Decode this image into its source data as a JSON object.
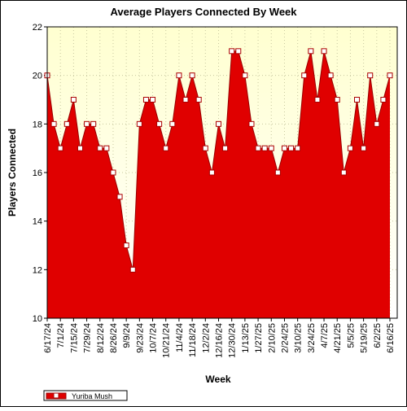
{
  "chart_data": {
    "type": "area",
    "title": "Average Players Connected By Week",
    "xlabel": "Week",
    "ylabel": "Players Connected",
    "categories": [
      "6/17/24",
      null,
      "7/1/24",
      null,
      "7/15/24",
      null,
      "7/29/24",
      null,
      "8/12/24",
      null,
      "8/26/24",
      null,
      "9/9/24",
      null,
      "9/23/24",
      null,
      "10/7/24",
      null,
      "10/21/24",
      null,
      "11/4/24",
      null,
      "11/18/24",
      null,
      "12/2/24",
      null,
      "12/16/24",
      null,
      "12/30/24",
      null,
      "1/13/25",
      null,
      "1/27/25",
      null,
      "2/10/25",
      null,
      "2/24/25",
      null,
      "3/10/25",
      null,
      "3/24/25",
      null,
      "4/7/25",
      null,
      "4/21/25",
      null,
      "5/5/25",
      null,
      "5/19/25",
      null,
      "6/2/25",
      null,
      "6/16/25"
    ],
    "series": [
      {
        "name": "Yuriba Mush",
        "color": "#e00000",
        "values": [
          20,
          18,
          17,
          18,
          19,
          17,
          18,
          18,
          17,
          17,
          16,
          15,
          13,
          12,
          18,
          19,
          19,
          18,
          17,
          18,
          20,
          19,
          20,
          19,
          17,
          16,
          18,
          17,
          21,
          21,
          20,
          18,
          17,
          17,
          17,
          16,
          17,
          17,
          17,
          20,
          21,
          19,
          21,
          20,
          19,
          16,
          17,
          19,
          17,
          20,
          18,
          19,
          20
        ]
      }
    ],
    "ylim": [
      10,
      22
    ],
    "yticks": [
      10,
      12,
      14,
      16,
      18,
      20,
      22
    ],
    "grid": true,
    "legend": "bottom-left"
  }
}
